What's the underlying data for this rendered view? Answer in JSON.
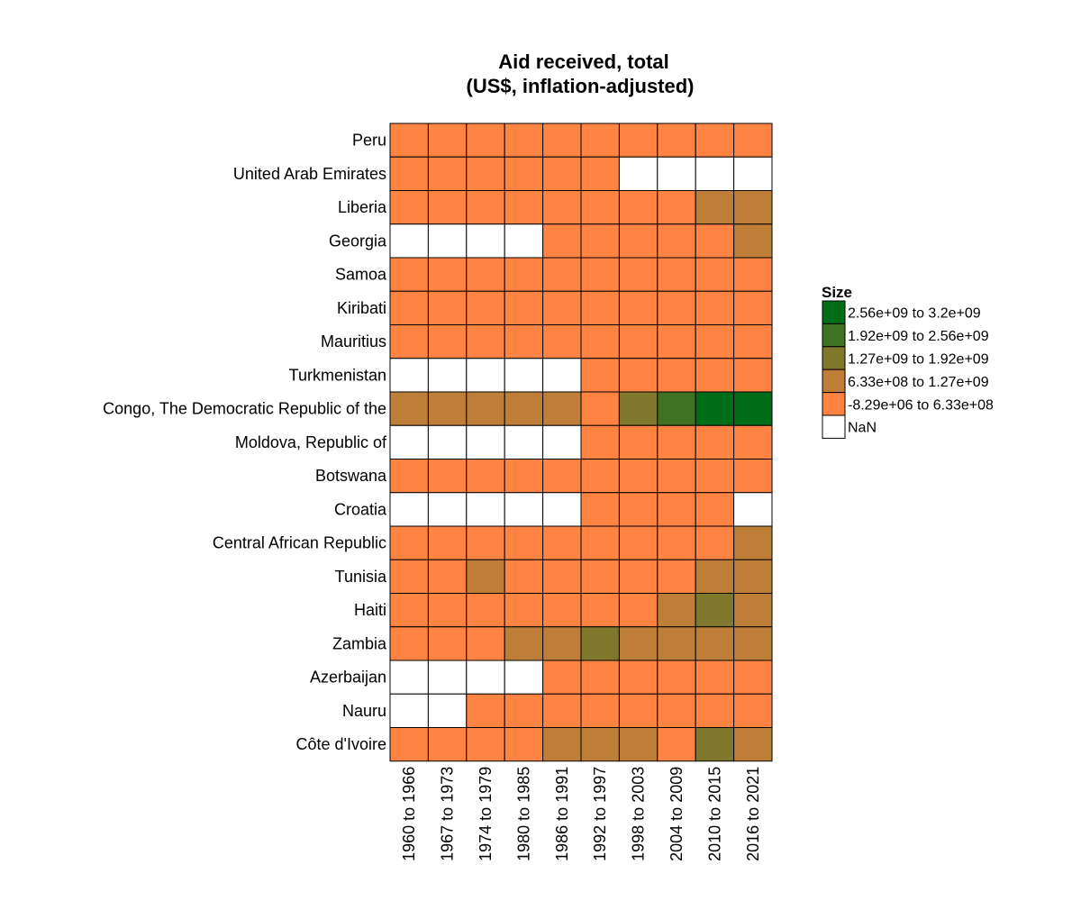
{
  "chart_data": {
    "type": "heatmap",
    "title": "Aid received, total",
    "subtitle": "(US$, inflation-adjusted)",
    "columns": [
      "1960 to 1966",
      "1967 to 1973",
      "1974 to 1979",
      "1980 to 1985",
      "1986 to 1991",
      "1992 to 1997",
      "1998 to 2003",
      "2004 to 2009",
      "2010 to 2015",
      "2016 to 2021"
    ],
    "rows": [
      "Peru",
      "United Arab Emirates",
      "Liberia",
      "Georgia",
      "Samoa",
      "Kiribati",
      "Mauritius",
      "Turkmenistan",
      "Congo, The Democratic Republic of the",
      "Moldova, Republic of",
      "Botswana",
      "Croatia",
      "Central African Republic",
      "Tunisia",
      "Haiti",
      "Zambia",
      "Azerbaijan",
      "Nauru",
      "Côte d'Ivoire"
    ],
    "value_encoding": "legend bin index: 0 = -8.29e+06 to 6.33e+08, 1 = 6.33e+08 to 1.27e+09, 2 = 1.27e+09 to 1.92e+09, 3 = 1.92e+09 to 2.56e+09, 4 = 2.56e+09 to 3.2e+09, null = NaN",
    "cells": [
      [
        0,
        0,
        0,
        0,
        0,
        0,
        0,
        0,
        0,
        0
      ],
      [
        0,
        0,
        0,
        0,
        0,
        0,
        null,
        null,
        null,
        null
      ],
      [
        0,
        0,
        0,
        0,
        0,
        0,
        0,
        0,
        1,
        1
      ],
      [
        null,
        null,
        null,
        null,
        0,
        0,
        0,
        0,
        0,
        1
      ],
      [
        0,
        0,
        0,
        0,
        0,
        0,
        0,
        0,
        0,
        0
      ],
      [
        0,
        0,
        0,
        0,
        0,
        0,
        0,
        0,
        0,
        0
      ],
      [
        0,
        0,
        0,
        0,
        0,
        0,
        0,
        0,
        0,
        0
      ],
      [
        null,
        null,
        null,
        null,
        null,
        0,
        0,
        0,
        0,
        0
      ],
      [
        1,
        1,
        1,
        1,
        1,
        0,
        2,
        3,
        4,
        4
      ],
      [
        null,
        null,
        null,
        null,
        null,
        0,
        0,
        0,
        0,
        0
      ],
      [
        0,
        0,
        0,
        0,
        0,
        0,
        0,
        0,
        0,
        0
      ],
      [
        null,
        null,
        null,
        null,
        null,
        0,
        0,
        0,
        0,
        null
      ],
      [
        0,
        0,
        0,
        0,
        0,
        0,
        0,
        0,
        0,
        1
      ],
      [
        0,
        0,
        1,
        0,
        0,
        0,
        0,
        0,
        1,
        1
      ],
      [
        0,
        0,
        0,
        0,
        0,
        0,
        0,
        1,
        2,
        1
      ],
      [
        0,
        0,
        0,
        1,
        1,
        2,
        1,
        1,
        1,
        1
      ],
      [
        null,
        null,
        null,
        null,
        0,
        0,
        0,
        0,
        0,
        0
      ],
      [
        null,
        null,
        0,
        0,
        0,
        0,
        0,
        0,
        0,
        0
      ],
      [
        0,
        0,
        0,
        0,
        1,
        1,
        1,
        0,
        2,
        1
      ]
    ],
    "legend": {
      "title": "Size",
      "placement": "right",
      "items": [
        {
          "label": "2.56e+09  to  3.2e+09",
          "color": "#006d18"
        },
        {
          "label": "1.92e+09  to  2.56e+09",
          "color": "#3f7323"
        },
        {
          "label": "1.27e+09  to  1.92e+09",
          "color": "#7f782d"
        },
        {
          "label": "6.33e+08  to  1.27e+09",
          "color": "#bf7e38"
        },
        {
          "label": "-8.29e+06  to  6.33e+08",
          "color": "#ff8443"
        },
        {
          "label": "NaN",
          "color": "#ffffff"
        }
      ]
    },
    "bin_colors": [
      "#ff8443",
      "#bf7e38",
      "#7f782d",
      "#3f7323",
      "#006d18"
    ],
    "nan_color": "#ffffff"
  }
}
